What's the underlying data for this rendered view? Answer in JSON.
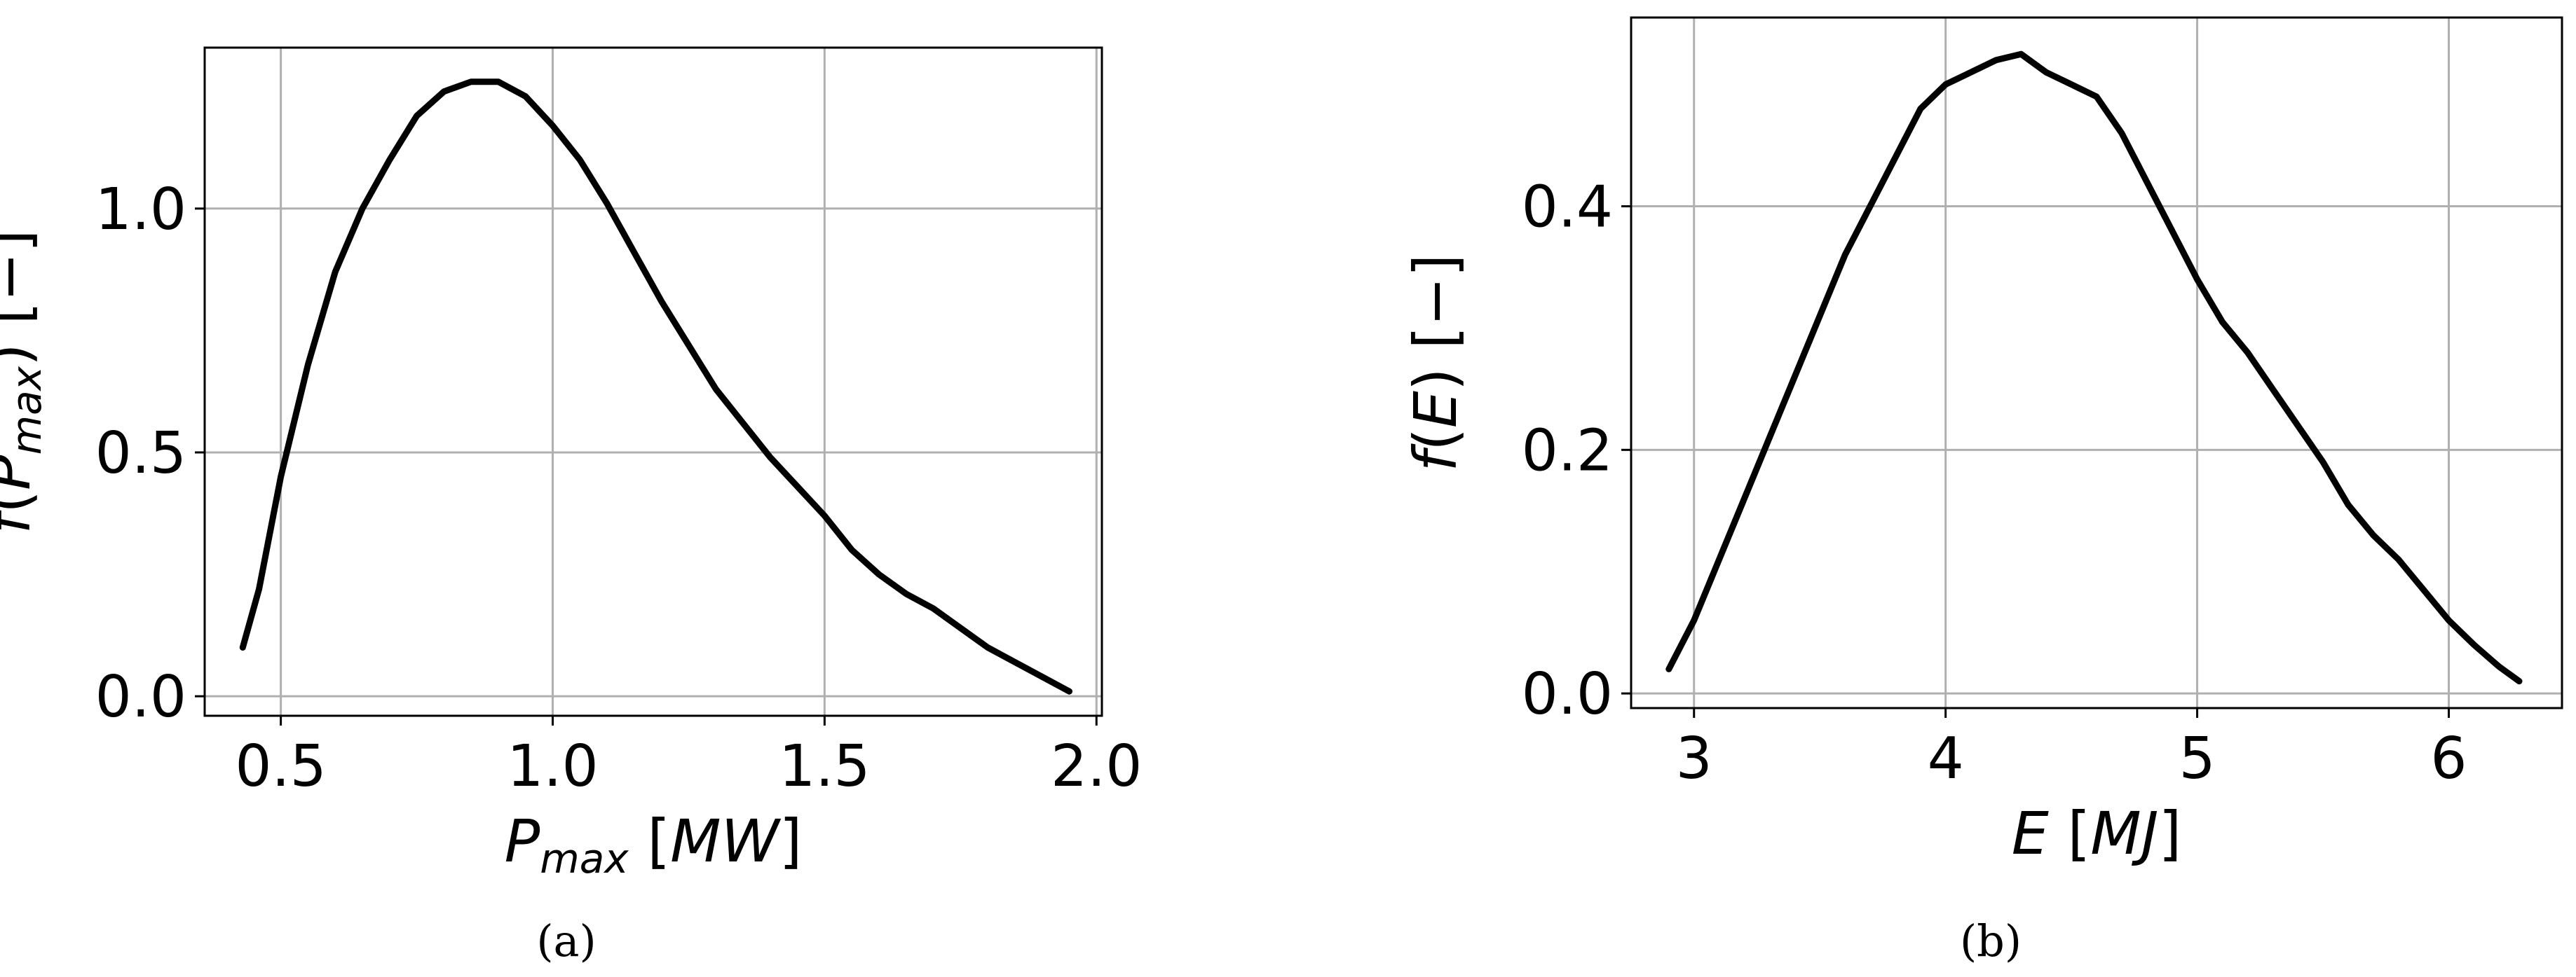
{
  "chart_data": [
    {
      "type": "line",
      "caption": "(a)",
      "xlim": [
        0.36,
        2.01
      ],
      "ylim": [
        -0.04,
        1.33
      ],
      "xticks": [
        0.5,
        1.0,
        1.5,
        2.0
      ],
      "xtick_labels": [
        "0.5",
        "1.0",
        "1.5",
        "2.0"
      ],
      "yticks": [
        0.0,
        0.5,
        1.0
      ],
      "ytick_labels": [
        "0.0",
        "0.5",
        "1.0"
      ],
      "xlabel": {
        "base": "P",
        "sub": "max",
        "unit": "[MW]"
      },
      "ylabel": {
        "prefix": "f(",
        "base": "P",
        "sub": "max",
        "suffix": ") [−]"
      },
      "grid": true,
      "series": [
        {
          "color": "#000000",
          "x": [
            0.43,
            0.46,
            0.5,
            0.55,
            0.6,
            0.65,
            0.7,
            0.75,
            0.8,
            0.85,
            0.9,
            0.95,
            1.0,
            1.05,
            1.1,
            1.15,
            1.2,
            1.25,
            1.3,
            1.35,
            1.4,
            1.45,
            1.5,
            1.55,
            1.6,
            1.65,
            1.7,
            1.75,
            1.8,
            1.85,
            1.9,
            1.95
          ],
          "y": [
            0.1,
            0.22,
            0.45,
            0.68,
            0.87,
            1.0,
            1.1,
            1.19,
            1.24,
            1.26,
            1.26,
            1.23,
            1.17,
            1.1,
            1.01,
            0.91,
            0.81,
            0.72,
            0.63,
            0.56,
            0.49,
            0.43,
            0.37,
            0.3,
            0.25,
            0.21,
            0.18,
            0.14,
            0.1,
            0.07,
            0.04,
            0.01
          ]
        }
      ]
    },
    {
      "type": "line",
      "caption": "(b)",
      "xlim": [
        2.75,
        6.45
      ],
      "ylim": [
        -0.012,
        0.555
      ],
      "xticks": [
        3,
        4,
        5,
        6
      ],
      "xtick_labels": [
        "3",
        "4",
        "5",
        "6"
      ],
      "yticks": [
        0.0,
        0.2,
        0.4
      ],
      "ytick_labels": [
        "0.0",
        "0.2",
        "0.4"
      ],
      "xlabel": {
        "base": "E",
        "sub": "",
        "unit": "[MJ]"
      },
      "ylabel": {
        "prefix": "f(",
        "base": "E",
        "sub": "",
        "suffix": ") [−]"
      },
      "grid": true,
      "series": [
        {
          "color": "#000000",
          "x": [
            2.9,
            3.0,
            3.1,
            3.2,
            3.3,
            3.4,
            3.5,
            3.6,
            3.7,
            3.8,
            3.9,
            4.0,
            4.1,
            4.2,
            4.3,
            4.4,
            4.5,
            4.6,
            4.7,
            4.8,
            4.9,
            5.0,
            5.1,
            5.2,
            5.3,
            5.4,
            5.5,
            5.6,
            5.7,
            5.8,
            5.9,
            6.0,
            6.1,
            6.2,
            6.28
          ],
          "y": [
            0.02,
            0.06,
            0.11,
            0.16,
            0.21,
            0.26,
            0.31,
            0.36,
            0.4,
            0.44,
            0.48,
            0.5,
            0.51,
            0.52,
            0.525,
            0.51,
            0.5,
            0.49,
            0.46,
            0.42,
            0.38,
            0.34,
            0.305,
            0.28,
            0.25,
            0.22,
            0.19,
            0.155,
            0.13,
            0.11,
            0.085,
            0.06,
            0.04,
            0.022,
            0.01
          ]
        }
      ]
    }
  ]
}
